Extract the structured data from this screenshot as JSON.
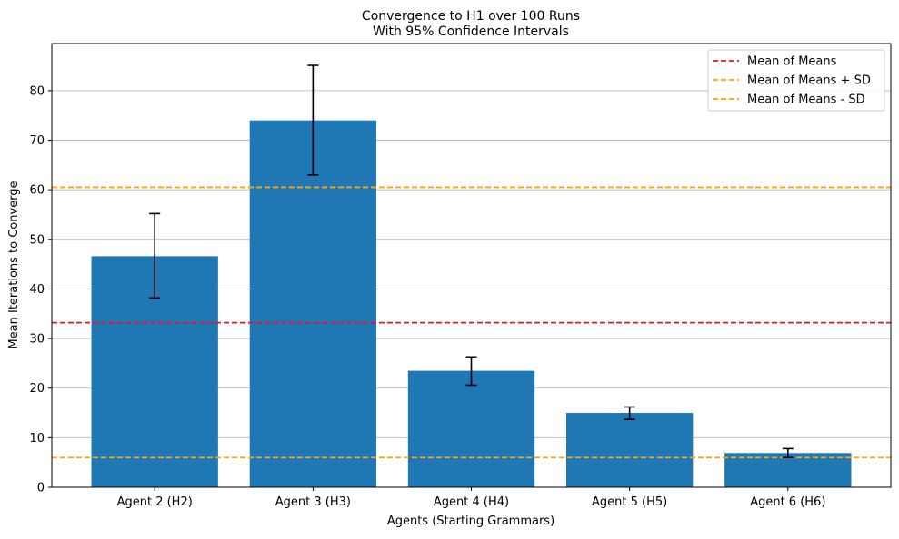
{
  "chart_data": {
    "type": "bar",
    "title_line1": "Convergence to H1 over 100 Runs",
    "title_line2": "With 95% Confidence Intervals",
    "xlabel": "Agents (Starting Grammars)",
    "ylabel": "Mean Iterations to Converge",
    "categories": [
      "Agent 2 (H2)",
      "Agent 3 (H3)",
      "Agent 4 (H4)",
      "Agent 5 (H5)",
      "Agent 6 (H6)"
    ],
    "values": [
      46.6,
      74.0,
      23.5,
      15.0,
      6.9
    ],
    "ci_lower": [
      38.2,
      63.0,
      20.6,
      13.7,
      6.0
    ],
    "ci_upper": [
      55.2,
      85.1,
      26.3,
      16.2,
      7.8
    ],
    "reference_lines": [
      {
        "label": "Mean of Means",
        "value": 33.2,
        "color": "#e41a1c"
      },
      {
        "label": "Mean of Means + SD",
        "value": 60.5,
        "color": "#ffa500"
      },
      {
        "label": "Mean of Means - SD",
        "value": 6.0,
        "color": "#ffa500"
      }
    ],
    "ylim": [
      0,
      89.5
    ],
    "yticks": [
      0,
      10,
      20,
      30,
      40,
      50,
      60,
      70,
      80
    ],
    "grid": "y",
    "legend_position": "top-right",
    "bar_color": "#1f77b4"
  }
}
